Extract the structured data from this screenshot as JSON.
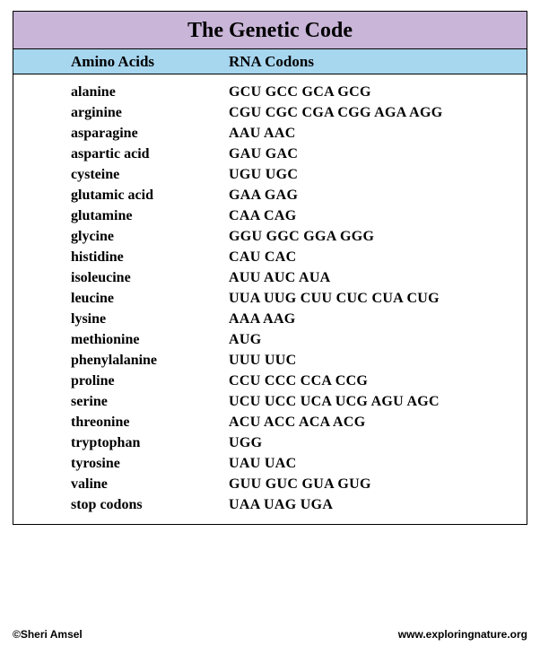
{
  "title": "The Genetic Code",
  "headers": {
    "amino": "Amino Acids",
    "codon": "RNA Codons"
  },
  "rows": [
    {
      "amino": "alanine",
      "codons": "GCU GCC GCA GCG"
    },
    {
      "amino": "arginine",
      "codons": "CGU CGC CGA CGG AGA AGG"
    },
    {
      "amino": "asparagine",
      "codons": "AAU AAC"
    },
    {
      "amino": "aspartic acid",
      "codons": "GAU GAC"
    },
    {
      "amino": "cysteine",
      "codons": "UGU UGC"
    },
    {
      "amino": "glutamic acid",
      "codons": "GAA GAG"
    },
    {
      "amino": "glutamine",
      "codons": "CAA CAG"
    },
    {
      "amino": "glycine",
      "codons": "GGU GGC GGA GGG"
    },
    {
      "amino": "histidine",
      "codons": "CAU CAC"
    },
    {
      "amino": "isoleucine",
      "codons": "AUU AUC AUA"
    },
    {
      "amino": "leucine",
      "codons": "UUA UUG CUU CUC CUA CUG"
    },
    {
      "amino": "lysine",
      "codons": "AAA AAG"
    },
    {
      "amino": "methionine",
      "codons": "AUG"
    },
    {
      "amino": "phenylalanine",
      "codons": "UUU UUC"
    },
    {
      "amino": "proline",
      "codons": "CCU CCC CCA CCG"
    },
    {
      "amino": "serine",
      "codons": "UCU UCC UCA UCG AGU AGC"
    },
    {
      "amino": "threonine",
      "codons": "ACU ACC ACA ACG"
    },
    {
      "amino": "tryptophan",
      "codons": "UGG"
    },
    {
      "amino": "tyrosine",
      "codons": "UAU UAC"
    },
    {
      "amino": "valine",
      "codons": "GUU GUC GUA GUG"
    },
    {
      "amino": "stop codons",
      "codons": "UAA UAG UGA"
    }
  ],
  "footer": {
    "copyright": "©Sheri Amsel",
    "url": "www.exploringnature.org"
  },
  "colors": {
    "title_bg": "#c9b5d8",
    "header_bg": "#a7d6ef",
    "border": "#000000",
    "text": "#000000",
    "body_bg": "#ffffff"
  },
  "fonts": {
    "title_size_pt": 24,
    "header_size_pt": 17,
    "body_size_pt": 16,
    "footer_size_pt": 12,
    "family": "Georgia"
  }
}
